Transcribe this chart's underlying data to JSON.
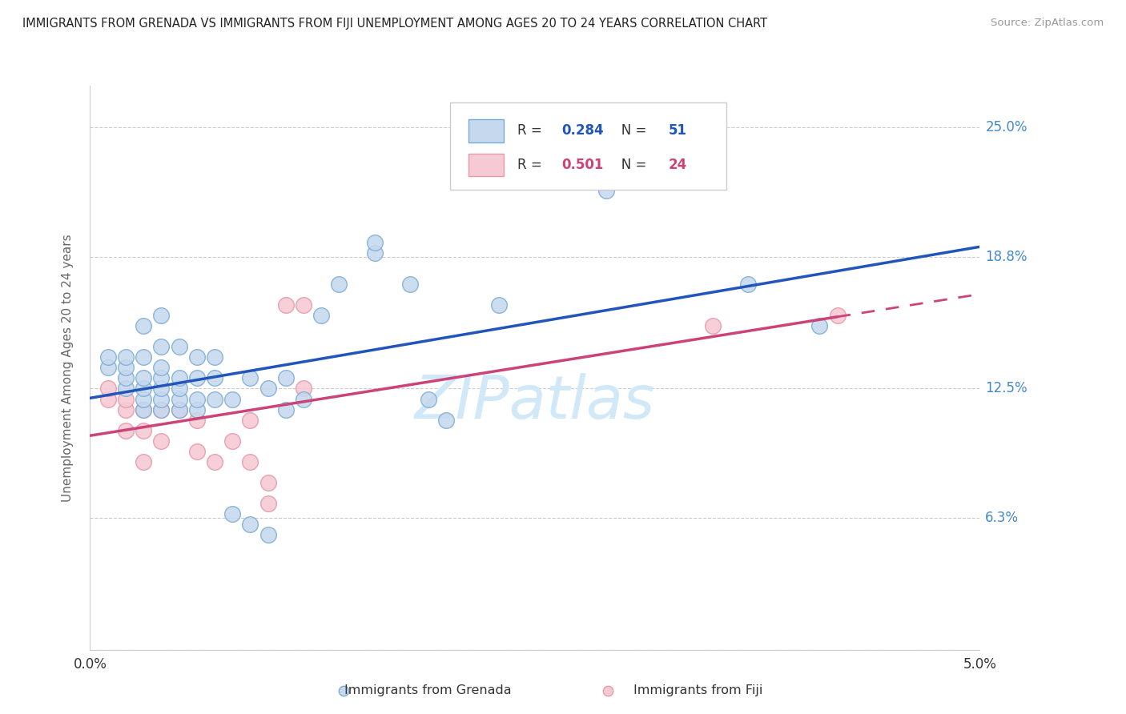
{
  "title": "IMMIGRANTS FROM GRENADA VS IMMIGRANTS FROM FIJI UNEMPLOYMENT AMONG AGES 20 TO 24 YEARS CORRELATION CHART",
  "source": "Source: ZipAtlas.com",
  "ylabel": "Unemployment Among Ages 20 to 24 years",
  "ytick_labels": [
    "",
    "6.3%",
    "12.5%",
    "18.8%",
    "25.0%"
  ],
  "ytick_values": [
    0.0,
    0.063,
    0.125,
    0.188,
    0.25
  ],
  "xlim": [
    0.0,
    0.05
  ],
  "ylim": [
    0.0,
    0.27
  ],
  "legend_blue_r": "0.284",
  "legend_blue_n": "51",
  "legend_pink_r": "0.501",
  "legend_pink_n": "24",
  "legend_label_blue": "Immigrants from Grenada",
  "legend_label_pink": "Immigrants from Fiji",
  "watermark": "ZIPatlas",
  "blue_fill": "#c5d8ee",
  "blue_edge": "#7aaad4",
  "blue_line": "#2255bb",
  "pink_fill": "#f5cad4",
  "pink_edge": "#e899aa",
  "pink_line": "#cc4477",
  "ytick_color": "#4488cc",
  "xtick_color": "#333333",
  "grid_color": "#cccccc",
  "spine_color": "#cccccc",
  "title_color": "#222222",
  "source_color": "#999999",
  "ylabel_color": "#666666",
  "watermark_color": "#d0e8f8",
  "grenada_x": [
    0.001,
    0.001,
    0.002,
    0.002,
    0.002,
    0.002,
    0.003,
    0.003,
    0.003,
    0.003,
    0.003,
    0.003,
    0.004,
    0.004,
    0.004,
    0.004,
    0.004,
    0.004,
    0.004,
    0.005,
    0.005,
    0.005,
    0.005,
    0.005,
    0.006,
    0.006,
    0.006,
    0.006,
    0.007,
    0.007,
    0.007,
    0.008,
    0.008,
    0.009,
    0.009,
    0.01,
    0.01,
    0.011,
    0.011,
    0.012,
    0.013,
    0.014,
    0.016,
    0.016,
    0.018,
    0.019,
    0.02,
    0.023,
    0.029,
    0.037,
    0.041
  ],
  "grenada_y": [
    0.135,
    0.14,
    0.125,
    0.13,
    0.135,
    0.14,
    0.115,
    0.12,
    0.125,
    0.13,
    0.14,
    0.155,
    0.115,
    0.12,
    0.125,
    0.13,
    0.135,
    0.145,
    0.16,
    0.115,
    0.12,
    0.125,
    0.13,
    0.145,
    0.115,
    0.12,
    0.13,
    0.14,
    0.12,
    0.13,
    0.14,
    0.065,
    0.12,
    0.06,
    0.13,
    0.055,
    0.125,
    0.13,
    0.115,
    0.12,
    0.16,
    0.175,
    0.19,
    0.195,
    0.175,
    0.12,
    0.11,
    0.165,
    0.22,
    0.175,
    0.155
  ],
  "fiji_x": [
    0.001,
    0.001,
    0.002,
    0.002,
    0.002,
    0.003,
    0.003,
    0.003,
    0.004,
    0.004,
    0.005,
    0.006,
    0.006,
    0.007,
    0.008,
    0.009,
    0.009,
    0.01,
    0.01,
    0.011,
    0.012,
    0.012,
    0.035,
    0.042
  ],
  "fiji_y": [
    0.12,
    0.125,
    0.105,
    0.115,
    0.12,
    0.09,
    0.105,
    0.115,
    0.1,
    0.115,
    0.115,
    0.095,
    0.11,
    0.09,
    0.1,
    0.09,
    0.11,
    0.07,
    0.08,
    0.165,
    0.165,
    0.125,
    0.155,
    0.16
  ]
}
